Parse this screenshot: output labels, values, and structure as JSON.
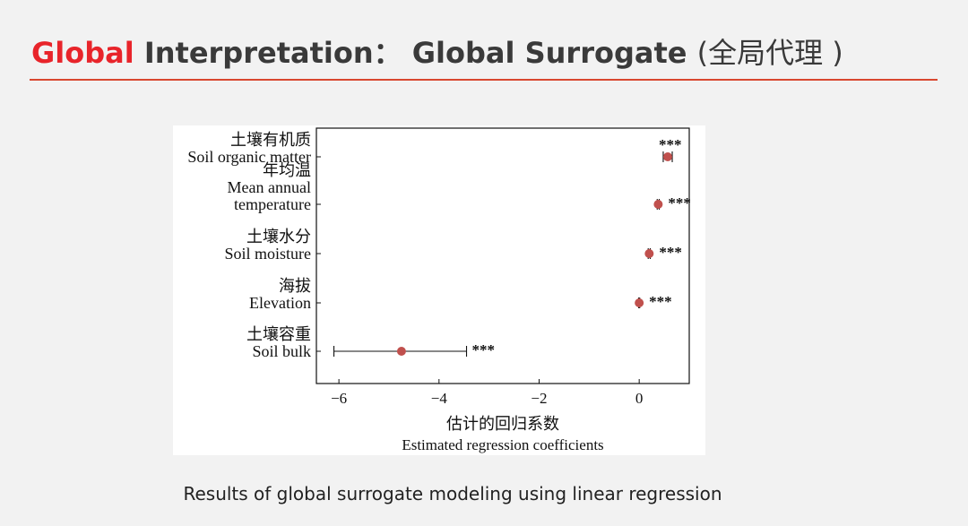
{
  "slide": {
    "title_accent": "Global",
    "title_main": " Interpretation： Global Surrogate ",
    "title_paren": "(全局代理 )",
    "caption": "Results of global surrogate modeling using linear regression"
  },
  "colors": {
    "accent": "#e8242a",
    "rule": "#d9472f",
    "point": "#c0504d",
    "background": "#f2f2f2"
  },
  "chart_data": {
    "type": "scatter",
    "subtype": "coefficient-plot-with-error-bars",
    "xlabel_cn": "估计的回归系数",
    "xlabel_en": "Estimated regression coefficients",
    "xlim": [
      -6.45,
      1.0
    ],
    "xticks": [
      -6,
      -4,
      -2,
      0
    ],
    "xtick_labels": [
      "−6",
      "−4",
      "−2",
      "0"
    ],
    "grid": false,
    "legend": "none",
    "significance_marker": "***",
    "points": [
      {
        "label_cn": "土壤有机质",
        "label_en": [
          "Soil organic matter"
        ],
        "value": 0.57,
        "ci_low": 0.48,
        "ci_high": 0.66,
        "sig": "***"
      },
      {
        "label_cn": "年均温",
        "label_en": [
          "Mean annual",
          "temperature"
        ],
        "value": 0.38,
        "ci_low": 0.36,
        "ci_high": 0.4,
        "sig": "***"
      },
      {
        "label_cn": "土壤水分",
        "label_en": [
          "Soil moisture"
        ],
        "value": 0.2,
        "ci_low": 0.18,
        "ci_high": 0.22,
        "sig": "***"
      },
      {
        "label_cn": "海拔",
        "label_en": [
          "Elevation"
        ],
        "value": 0.0,
        "ci_low": -0.01,
        "ci_high": 0.01,
        "sig": "***"
      },
      {
        "label_cn": "土壤容重",
        "label_en": [
          "Soil bulk"
        ],
        "value": -4.75,
        "ci_low": -6.1,
        "ci_high": -3.45,
        "sig": "***"
      }
    ]
  }
}
